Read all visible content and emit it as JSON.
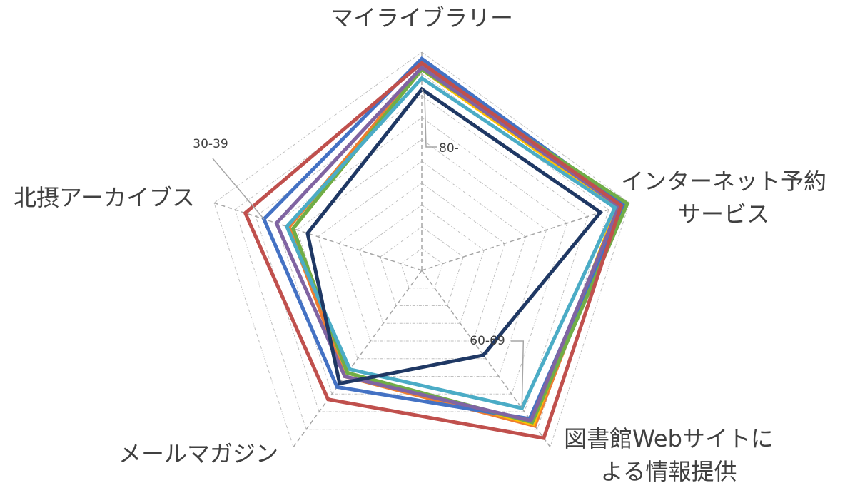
{
  "chart_data": {
    "type": "radar",
    "title": "",
    "axes": [
      "マイライブラリー",
      "インターネット予約サービス",
      "図書館Webサイトによる情報提供",
      "メールマガジン",
      "北摂アーカイブス"
    ],
    "axis_label_lines": [
      [
        "マイライブラリー"
      ],
      [
        "インターネット予約",
        "サービス"
      ],
      [
        "図書館Webサイトに",
        "よる情報提供"
      ],
      [
        "メールマガジン"
      ],
      [
        "北摂アーカイブス"
      ]
    ],
    "rlim": [
      0,
      100
    ],
    "grid_rings": 10,
    "grid": true,
    "legend": "none",
    "series": [
      {
        "color": "#ED7D31",
        "values": [
          93,
          95,
          88,
          60,
          64
        ]
      },
      {
        "color": "#FFC000",
        "values": [
          92,
          94,
          87,
          58,
          62
        ]
      },
      {
        "color": "#4472C4",
        "values": [
          97,
          97,
          84,
          66,
          76
        ]
      },
      {
        "color": "#70AD47",
        "values": [
          92,
          99,
          86,
          58,
          62
        ]
      },
      {
        "color": "#8064A2",
        "values": [
          93,
          95,
          85,
          60,
          70
        ]
      },
      {
        "color": "#4BACC6",
        "values": [
          88,
          93,
          78,
          56,
          65
        ]
      },
      {
        "color": "#C0504D",
        "values": [
          95,
          96,
          95,
          73,
          85
        ]
      },
      {
        "color": "#1F3864",
        "values": [
          83,
          86,
          48,
          64,
          55
        ]
      }
    ],
    "annotations": [
      {
        "text": "80-",
        "axis": 0,
        "value": 83
      },
      {
        "text": "30-39",
        "axis": 4,
        "value": 76
      },
      {
        "text": "60-69",
        "axis": 2,
        "value": 78
      }
    ]
  }
}
